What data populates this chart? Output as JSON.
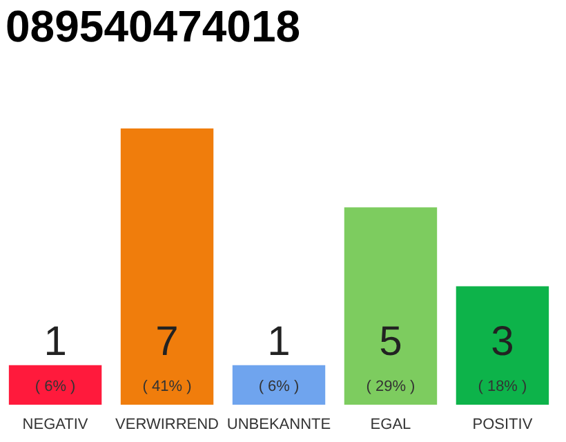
{
  "chart_data": {
    "type": "bar",
    "title": "089540474018",
    "categories": [
      "NEGATIV",
      "VERWIRREND",
      "UNBEKANNTE",
      "EGAL",
      "POSITIV"
    ],
    "values": [
      1,
      7,
      1,
      5,
      3
    ],
    "colors": [
      "#ff1a3c",
      "#f07d0c",
      "#6fa4ee",
      "#7dcc5f",
      "#0db34a"
    ],
    "ylim": [
      0,
      7
    ],
    "tick_labels": "x",
    "data_labels": true,
    "annotations": [
      {
        "text": "( 6% )",
        "x": "NEGATIV",
        "y": 0
      },
      {
        "text": "( 41% )",
        "x": "VERWIRREND",
        "y": 0
      },
      {
        "text": "( 6% )",
        "x": "UNBEKANNTE",
        "y": 0
      },
      {
        "text": "( 29% )",
        "x": "EGAL",
        "y": 0
      },
      {
        "text": "( 18% )",
        "x": "POSITIV",
        "y": 0
      }
    ]
  }
}
